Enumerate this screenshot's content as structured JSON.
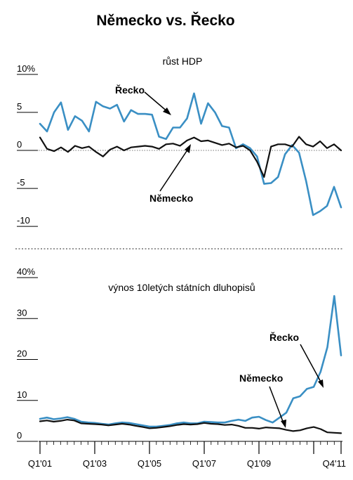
{
  "title": "Německo vs. Řecko",
  "colors": {
    "greece": "#3a8fc4",
    "germany": "#111111",
    "text": "#000000"
  },
  "chart_data": [
    {
      "type": "line",
      "title": "růst HDP",
      "ylim": [
        -11,
        11
      ],
      "yticks": [
        {
          "value": 10,
          "label": "10%"
        },
        {
          "value": 5,
          "label": "5"
        },
        {
          "value": 0,
          "label": "0"
        },
        {
          "value": -5,
          "label": "-5"
        },
        {
          "value": -10,
          "label": "-10"
        }
      ],
      "zero_line": "dotted",
      "series": [
        {
          "name": "Řecko",
          "color": "#3a8fc4",
          "values": [
            3.5,
            2.5,
            5.0,
            6.3,
            2.7,
            4.5,
            3.9,
            2.5,
            6.4,
            5.8,
            5.5,
            6.0,
            3.8,
            5.3,
            4.8,
            4.8,
            4.7,
            1.8,
            1.5,
            3.0,
            3.0,
            4.2,
            7.5,
            3.5,
            6.2,
            5.0,
            3.2,
            3.0,
            0.3,
            0.8,
            0.3,
            -0.8,
            -4.4,
            -4.3,
            -3.5,
            -0.5,
            0.7,
            -0.3,
            -4.0,
            -8.5,
            -8.0,
            -7.3,
            -4.8,
            -7.5
          ]
        },
        {
          "name": "Německo",
          "color": "#111111",
          "values": [
            1.7,
            0.2,
            -0.1,
            0.4,
            -0.2,
            0.6,
            0.3,
            0.5,
            -0.2,
            -0.8,
            0.1,
            0.5,
            0.0,
            0.4,
            0.5,
            0.6,
            0.5,
            0.2,
            0.8,
            0.9,
            0.6,
            1.3,
            1.7,
            1.2,
            1.3,
            1.0,
            0.7,
            0.9,
            0.4,
            0.6,
            0.0,
            -1.5,
            -3.5,
            0.5,
            0.8,
            0.8,
            0.5,
            1.8,
            0.8,
            0.5,
            1.2,
            0.3,
            0.8,
            0.0
          ]
        }
      ],
      "annotations": [
        {
          "text": "Řecko",
          "series": "Řecko"
        },
        {
          "text": "Německo",
          "series": "Německo"
        }
      ]
    },
    {
      "type": "line",
      "title": "výnos 10letých státních dluhopisů",
      "ylim": [
        0,
        40
      ],
      "yticks": [
        {
          "value": 40,
          "label": "40%"
        },
        {
          "value": 30,
          "label": "30"
        },
        {
          "value": 20,
          "label": "20"
        },
        {
          "value": 10,
          "label": "10"
        },
        {
          "value": 0,
          "label": "0"
        }
      ],
      "x_tick_labels": [
        "Q1'01",
        "Q1'03",
        "Q1'05",
        "Q1'07",
        "Q1'09",
        "Q4'11"
      ],
      "series": [
        {
          "name": "Řecko",
          "color": "#3a8fc4",
          "values": [
            5.5,
            5.8,
            5.4,
            5.6,
            5.9,
            5.5,
            4.8,
            4.6,
            4.5,
            4.3,
            4.1,
            4.4,
            4.6,
            4.5,
            4.2,
            3.9,
            3.6,
            3.6,
            3.8,
            4.0,
            4.4,
            4.6,
            4.4,
            4.4,
            4.8,
            4.7,
            4.6,
            4.6,
            5.0,
            5.3,
            5.0,
            5.8,
            6.0,
            5.2,
            4.6,
            5.8,
            7.0,
            10.5,
            11.0,
            12.8,
            13.3,
            17.0,
            23.0,
            35.5,
            21.0
          ]
        },
        {
          "name": "Německo",
          "color": "#111111",
          "values": [
            4.9,
            5.1,
            4.8,
            5.0,
            5.3,
            5.1,
            4.4,
            4.3,
            4.2,
            4.1,
            3.9,
            4.1,
            4.3,
            4.1,
            3.8,
            3.5,
            3.2,
            3.3,
            3.5,
            3.7,
            4.0,
            4.2,
            4.1,
            4.2,
            4.5,
            4.3,
            4.2,
            4.0,
            4.1,
            3.8,
            3.3,
            3.3,
            3.1,
            3.4,
            3.3,
            3.2,
            2.8,
            2.5,
            2.7,
            3.2,
            3.5,
            3.0,
            2.2,
            2.1,
            2.0
          ]
        }
      ],
      "annotations": [
        {
          "text": "Řecko",
          "series": "Řecko"
        },
        {
          "text": "Německo",
          "series": "Německo"
        }
      ]
    }
  ]
}
